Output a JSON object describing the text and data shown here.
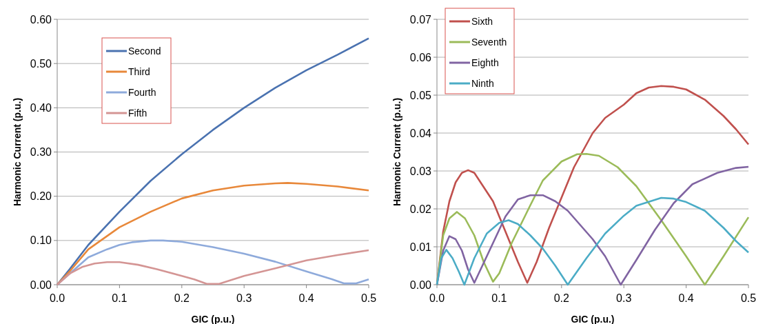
{
  "chart_data": [
    {
      "type": "line",
      "xlabel": "GIC (p.u.)",
      "ylabel": "Harmonic Current (p.u.)",
      "xlim": [
        0,
        0.5
      ],
      "ylim": [
        0,
        0.6
      ],
      "xticks": [
        {
          "value": 0,
          "label": "0.0"
        },
        0.1,
        0.2,
        0.3,
        0.4,
        0.5
      ],
      "yticks": [
        {
          "value": 0,
          "label": "0.00"
        },
        {
          "value": 0.1,
          "label": "0.10"
        },
        {
          "value": 0.2,
          "label": "0.20"
        },
        {
          "value": 0.3,
          "label": "0.30"
        },
        {
          "value": 0.4,
          "label": "0.40"
        },
        {
          "value": 0.5,
          "label": "0.50"
        },
        {
          "value": 0.6,
          "label": "0.60"
        }
      ],
      "grid": "y",
      "legend": "top left",
      "series": [
        {
          "name": "Second",
          "color": "#4a72b0",
          "x": [
            0,
            0.02,
            0.05,
            0.1,
            0.15,
            0.2,
            0.25,
            0.3,
            0.35,
            0.4,
            0.45,
            0.5
          ],
          "values": [
            0,
            0.035,
            0.09,
            0.165,
            0.235,
            0.295,
            0.35,
            0.4,
            0.445,
            0.485,
            0.52,
            0.557
          ]
        },
        {
          "name": "Third",
          "color": "#e8883a",
          "x": [
            0,
            0.02,
            0.05,
            0.1,
            0.15,
            0.2,
            0.25,
            0.3,
            0.35,
            0.37,
            0.4,
            0.45,
            0.5
          ],
          "values": [
            0,
            0.03,
            0.08,
            0.13,
            0.165,
            0.195,
            0.213,
            0.224,
            0.229,
            0.23,
            0.228,
            0.222,
            0.213
          ]
        },
        {
          "name": "Fourth",
          "color": "#8eaadb",
          "x": [
            0,
            0.02,
            0.05,
            0.08,
            0.1,
            0.12,
            0.15,
            0.17,
            0.2,
            0.25,
            0.3,
            0.35,
            0.4,
            0.44,
            0.46,
            0.48,
            0.5
          ],
          "values": [
            0,
            0.025,
            0.062,
            0.08,
            0.09,
            0.096,
            0.1,
            0.1,
            0.097,
            0.085,
            0.07,
            0.052,
            0.03,
            0.013,
            0.003,
            0.003,
            0.012
          ]
        },
        {
          "name": "Fifth",
          "color": "#d49594",
          "x": [
            0,
            0.02,
            0.04,
            0.06,
            0.08,
            0.1,
            0.13,
            0.16,
            0.2,
            0.22,
            0.24,
            0.26,
            0.3,
            0.35,
            0.4,
            0.45,
            0.5
          ],
          "values": [
            0,
            0.025,
            0.04,
            0.048,
            0.051,
            0.051,
            0.045,
            0.035,
            0.02,
            0.012,
            0.002,
            0.002,
            0.02,
            0.037,
            0.055,
            0.067,
            0.078
          ]
        }
      ]
    },
    {
      "type": "line",
      "xlabel": "GIC (p.u.)",
      "ylabel": "Harmonic Current (p.u.)",
      "xlim": [
        0,
        0.5
      ],
      "ylim": [
        0,
        0.07
      ],
      "xticks": [
        {
          "value": 0,
          "label": "0.0"
        },
        0.1,
        0.2,
        0.3,
        0.4,
        0.5
      ],
      "yticks": [
        {
          "value": 0,
          "label": "0.00"
        },
        0.01,
        0.02,
        0.03,
        0.04,
        0.05,
        0.06,
        0.07
      ],
      "grid": "y",
      "legend": "top left",
      "series": [
        {
          "name": "Sixth",
          "color": "#c0504d",
          "x": [
            0,
            0.01,
            0.02,
            0.03,
            0.04,
            0.05,
            0.06,
            0.07,
            0.09,
            0.11,
            0.13,
            0.145,
            0.16,
            0.18,
            0.2,
            0.22,
            0.25,
            0.27,
            0.3,
            0.32,
            0.34,
            0.36,
            0.38,
            0.4,
            0.43,
            0.46,
            0.48,
            0.5
          ],
          "values": [
            0,
            0.014,
            0.022,
            0.027,
            0.0295,
            0.0302,
            0.0295,
            0.027,
            0.022,
            0.014,
            0.006,
            0.0005,
            0.006,
            0.015,
            0.023,
            0.031,
            0.04,
            0.044,
            0.0475,
            0.0505,
            0.052,
            0.0524,
            0.0522,
            0.0515,
            0.0488,
            0.0445,
            0.041,
            0.037
          ]
        },
        {
          "name": "Seventh",
          "color": "#9bbb59",
          "x": [
            0,
            0.01,
            0.02,
            0.032,
            0.045,
            0.06,
            0.075,
            0.09,
            0.1,
            0.12,
            0.15,
            0.17,
            0.2,
            0.225,
            0.24,
            0.26,
            0.29,
            0.32,
            0.36,
            0.4,
            0.43,
            0.46,
            0.5
          ],
          "values": [
            0,
            0.013,
            0.0175,
            0.0192,
            0.0175,
            0.013,
            0.006,
            0.0008,
            0.003,
            0.011,
            0.021,
            0.0275,
            0.0325,
            0.0344,
            0.0345,
            0.034,
            0.031,
            0.026,
            0.017,
            0.0075,
            0,
            0.0075,
            0.0178
          ]
        },
        {
          "name": "Eighth",
          "color": "#8064a2",
          "x": [
            0,
            0.01,
            0.02,
            0.03,
            0.04,
            0.05,
            0.06,
            0.07,
            0.09,
            0.11,
            0.13,
            0.15,
            0.17,
            0.19,
            0.21,
            0.25,
            0.27,
            0.295,
            0.32,
            0.35,
            0.38,
            0.41,
            0.45,
            0.48,
            0.5
          ],
          "values": [
            0,
            0.009,
            0.0128,
            0.012,
            0.009,
            0.004,
            0.0005,
            0.004,
            0.011,
            0.018,
            0.0225,
            0.0236,
            0.0236,
            0.022,
            0.0195,
            0.012,
            0.0075,
            0,
            0.0065,
            0.0145,
            0.0215,
            0.0265,
            0.0295,
            0.0308,
            0.0311
          ]
        },
        {
          "name": "Ninth",
          "color": "#4bacc6",
          "x": [
            0,
            0.007,
            0.015,
            0.025,
            0.035,
            0.044,
            0.06,
            0.08,
            0.1,
            0.115,
            0.13,
            0.15,
            0.17,
            0.19,
            0.21,
            0.24,
            0.27,
            0.3,
            0.32,
            0.36,
            0.38,
            0.4,
            0.43,
            0.46,
            0.48,
            0.5
          ],
          "values": [
            0,
            0.007,
            0.0092,
            0.007,
            0.0035,
            0,
            0.007,
            0.0135,
            0.0163,
            0.017,
            0.016,
            0.013,
            0.0095,
            0.005,
            0,
            0.007,
            0.0135,
            0.0182,
            0.0208,
            0.0229,
            0.0227,
            0.0218,
            0.0195,
            0.015,
            0.0115,
            0.0085
          ]
        }
      ]
    }
  ]
}
